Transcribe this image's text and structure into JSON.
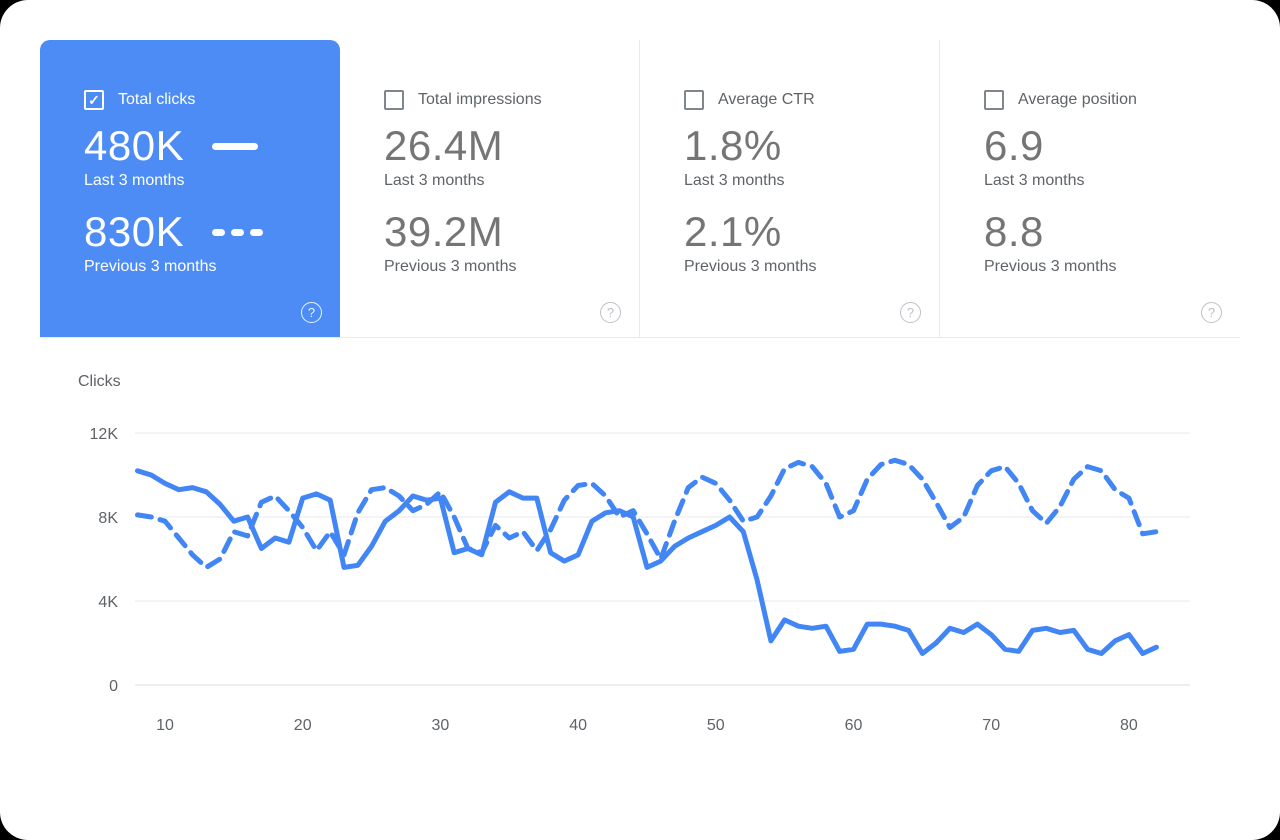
{
  "icons": {
    "check": "✓",
    "help": "?"
  },
  "cards": [
    {
      "label": "Total clicks",
      "checked": true,
      "selected": true,
      "primary_value": "480K",
      "primary_caption": "Last 3 months",
      "secondary_value": "830K",
      "secondary_caption": "Previous 3 months",
      "accent": "#4d8cf5"
    },
    {
      "label": "Total impressions",
      "checked": false,
      "selected": false,
      "primary_value": "26.4M",
      "primary_caption": "Last 3 months",
      "secondary_value": "39.2M",
      "secondary_caption": "Previous 3 months"
    },
    {
      "label": "Average CTR",
      "checked": false,
      "selected": false,
      "primary_value": "1.8%",
      "primary_caption": "Last 3 months",
      "secondary_value": "2.1%",
      "secondary_caption": "Previous 3 months"
    },
    {
      "label": "Average position",
      "checked": false,
      "selected": false,
      "primary_value": "6.9",
      "primary_caption": "Last 3 months",
      "secondary_value": "8.8",
      "secondary_caption": "Previous 3 months"
    }
  ],
  "chart_data": {
    "type": "line",
    "title": "Clicks",
    "ylabel": "Clicks",
    "ylim": [
      0,
      12000
    ],
    "grid": true,
    "line_color": "#4285f4",
    "grid_color": "#e8eaed",
    "baseline_color": "#dadce0",
    "y_ticks": [
      {
        "label": "12K",
        "value": 12
      },
      {
        "label": "8K",
        "value": 8
      },
      {
        "label": "4K",
        "value": 4
      },
      {
        "label": "0",
        "value": 0
      }
    ],
    "x_ticks": [
      10,
      20,
      30,
      40,
      50,
      60,
      70,
      80
    ],
    "x": [
      8,
      9,
      10,
      11,
      12,
      13,
      14,
      15,
      16,
      17,
      18,
      19,
      20,
      21,
      22,
      23,
      24,
      25,
      26,
      27,
      28,
      29,
      30,
      31,
      32,
      33,
      34,
      35,
      36,
      37,
      38,
      39,
      40,
      41,
      42,
      43,
      44,
      45,
      46,
      47,
      48,
      49,
      50,
      51,
      52,
      53,
      54,
      55,
      56,
      57,
      58,
      59,
      60,
      61,
      62,
      63,
      64,
      65,
      66,
      67,
      68,
      69,
      70,
      71,
      72,
      73,
      74,
      75,
      76,
      77,
      78,
      79,
      80,
      81,
      82
    ],
    "series": [
      {
        "name": "Last 3 months",
        "style": "solid",
        "values": [
          10.2,
          10.0,
          9.6,
          9.3,
          9.4,
          9.2,
          8.6,
          7.8,
          8.0,
          6.5,
          7.0,
          6.8,
          8.9,
          9.1,
          8.8,
          5.6,
          5.7,
          6.6,
          7.8,
          8.3,
          9.0,
          8.8,
          8.9,
          6.3,
          6.5,
          6.2,
          8.7,
          9.2,
          8.9,
          8.9,
          6.3,
          5.9,
          6.2,
          7.8,
          8.2,
          8.3,
          8.0,
          5.6,
          5.9,
          6.6,
          7.0,
          7.3,
          7.6,
          8.0,
          7.3,
          5.0,
          2.1,
          3.1,
          2.8,
          2.7,
          2.8,
          1.6,
          1.7,
          2.9,
          2.9,
          2.8,
          2.6,
          1.5,
          2.0,
          2.7,
          2.5,
          2.9,
          2.4,
          1.7,
          1.6,
          2.6,
          2.7,
          2.5,
          2.6,
          1.7,
          1.5,
          2.1,
          2.4,
          1.5,
          1.8
        ]
      },
      {
        "name": "Previous 3 months",
        "style": "dashed",
        "values": [
          8.1,
          8.0,
          7.8,
          7.0,
          6.2,
          5.6,
          6.0,
          7.3,
          7.1,
          8.7,
          9.0,
          8.3,
          7.5,
          6.4,
          7.3,
          6.2,
          8.2,
          9.3,
          9.4,
          9.0,
          8.3,
          8.6,
          9.2,
          8.0,
          6.5,
          6.3,
          7.6,
          7.0,
          7.3,
          6.4,
          7.4,
          8.8,
          9.5,
          9.6,
          9.0,
          8.0,
          8.3,
          7.2,
          6.0,
          7.8,
          9.4,
          9.9,
          9.6,
          8.8,
          7.8,
          8.0,
          9.0,
          10.3,
          10.6,
          10.4,
          9.6,
          8.0,
          8.3,
          9.8,
          10.5,
          10.7,
          10.5,
          9.8,
          8.7,
          7.5,
          8.0,
          9.5,
          10.2,
          10.4,
          9.6,
          8.3,
          7.7,
          8.5,
          9.8,
          10.4,
          10.2,
          9.3,
          8.9,
          7.2,
          7.3
        ]
      }
    ]
  }
}
